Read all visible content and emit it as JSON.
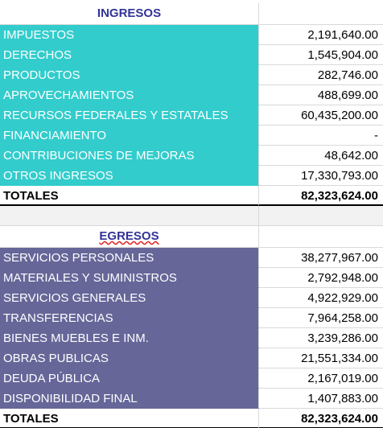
{
  "ingresos": {
    "title": "INGRESOS",
    "rows": [
      [
        "IMPUESTOS",
        "2,191,640.00"
      ],
      [
        "DERECHOS",
        "1,545,904.00"
      ],
      [
        "PRODUCTOS",
        "282,746.00"
      ],
      [
        "APROVECHAMIENTOS",
        "488,699.00"
      ],
      [
        "RECURSOS FEDERALES Y ESTATALES",
        "60,435,200.00"
      ],
      [
        "FINANCIAMIENTO",
        "-"
      ],
      [
        "CONTRIBUCIONES DE MEJORAS",
        "48,642.00"
      ],
      [
        "OTROS INGRESOS",
        "17,330,793.00"
      ]
    ],
    "total": [
      "TOTALES",
      "82,323,624.00"
    ]
  },
  "egresos": {
    "title": "EGRESOS",
    "rows": [
      [
        "SERVICIOS PERSONALES",
        "38,277,967.00"
      ],
      [
        "MATERIALES Y SUMINISTROS",
        "2,792,948.00"
      ],
      [
        "SERVICIOS GENERALES",
        "4,922,929.00"
      ],
      [
        "TRANSFERENCIAS",
        "7,964,258.00"
      ],
      [
        "BIENES MUEBLES E INM.",
        "3,239,286.00"
      ],
      [
        "OBRAS PUBLICAS",
        "21,551,334.00"
      ],
      [
        "DEUDA PÚBLICA",
        "2,167,019.00"
      ],
      [
        "DISPONIBILIDAD FINAL",
        "1,407,883.00"
      ]
    ],
    "total": [
      "TOTALES",
      "82,323,624.00"
    ]
  }
}
